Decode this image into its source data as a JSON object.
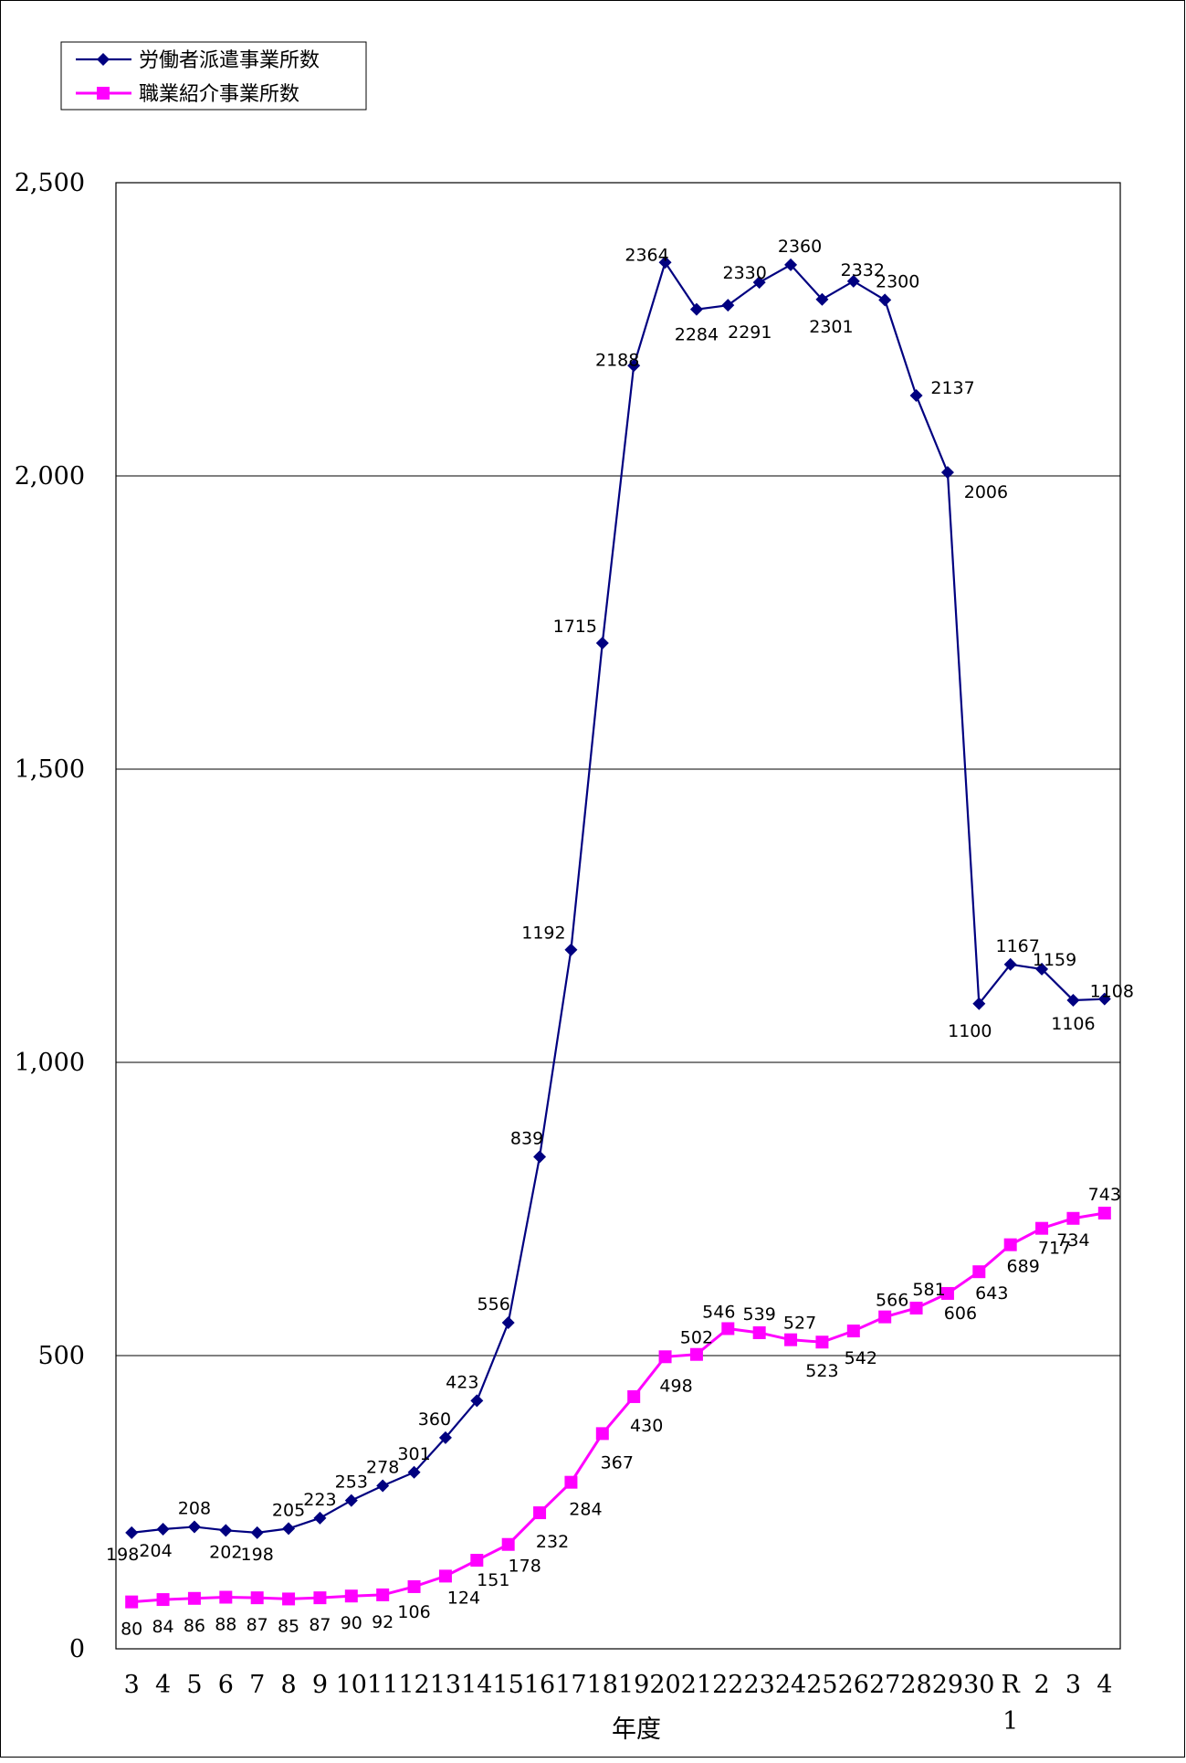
{
  "chart_data": {
    "type": "line",
    "xlabel": "年度",
    "ylabel": "",
    "ylim": [
      0,
      2500
    ],
    "yticks": [
      "0",
      "500",
      "1,000",
      "1,500",
      "2,000",
      "2,500"
    ],
    "ytick_values": [
      0,
      500,
      1000,
      1500,
      2000,
      2500
    ],
    "grid": true,
    "legend_position": "top-left",
    "categories": [
      "3",
      "4",
      "5",
      "6",
      "7",
      "8",
      "9",
      "10",
      "11",
      "12",
      "13",
      "14",
      "15",
      "16",
      "17",
      "18",
      "19",
      "20",
      "21",
      "22",
      "23",
      "24",
      "25",
      "26",
      "27",
      "28",
      "29",
      "30",
      "R\n1",
      "2",
      "3",
      "4"
    ],
    "category_lines": [
      [
        "3"
      ],
      [
        "4"
      ],
      [
        "5"
      ],
      [
        "6"
      ],
      [
        "7"
      ],
      [
        "8"
      ],
      [
        "9"
      ],
      [
        "10"
      ],
      [
        "11"
      ],
      [
        "12"
      ],
      [
        "13"
      ],
      [
        "14"
      ],
      [
        "15"
      ],
      [
        "16"
      ],
      [
        "17"
      ],
      [
        "18"
      ],
      [
        "19"
      ],
      [
        "20"
      ],
      [
        "21"
      ],
      [
        "22"
      ],
      [
        "23"
      ],
      [
        "24"
      ],
      [
        "25"
      ],
      [
        "26"
      ],
      [
        "27"
      ],
      [
        "28"
      ],
      [
        "29"
      ],
      [
        "30"
      ],
      [
        "R",
        "1"
      ],
      [
        "2"
      ],
      [
        "3"
      ],
      [
        "4"
      ]
    ],
    "series": [
      {
        "name": "労働者派遣事業所数",
        "color": "#000080",
        "marker": "diamond",
        "values": [
          198,
          204,
          208,
          202,
          198,
          205,
          223,
          253,
          278,
          301,
          360,
          423,
          556,
          839,
          1192,
          1715,
          2188,
          2364,
          2284,
          2291,
          2330,
          2360,
          2301,
          2332,
          2300,
          2137,
          2006,
          1100,
          1167,
          1159,
          1106,
          1108
        ]
      },
      {
        "name": "職業紹介事業所数",
        "color": "#FF00FF",
        "marker": "square",
        "values": [
          80,
          84,
          86,
          88,
          87,
          85,
          87,
          90,
          92,
          106,
          124,
          151,
          178,
          232,
          284,
          367,
          430,
          498,
          502,
          546,
          539,
          527,
          523,
          542,
          566,
          581,
          606,
          643,
          689,
          717,
          734,
          743
        ]
      }
    ]
  }
}
